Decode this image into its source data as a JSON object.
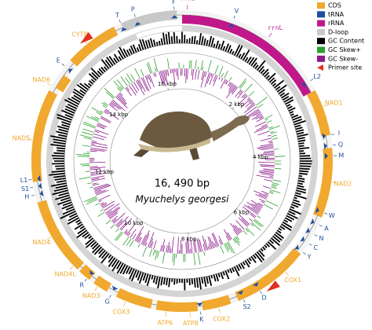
{
  "legend": [
    {
      "label": "CDS",
      "kind": "CDS"
    },
    {
      "label": "tRNA",
      "kind": "tRNA"
    },
    {
      "label": "rRNA",
      "kind": "rRNA"
    },
    {
      "label": "D-loop",
      "kind": "dloop"
    },
    {
      "label": "GC Content",
      "kind": "gc"
    },
    {
      "label": "GC Skew+",
      "kind": "skewpos"
    },
    {
      "label": "GC Skew-",
      "kind": "skewneg"
    },
    {
      "label": "Primer site",
      "kind": "primer"
    }
  ],
  "genome": {
    "length_label": "16, 490 bp",
    "species": "Myuchelys georgesi"
  },
  "scale_labels": [
    "2 kbp",
    "4 kbp",
    "6 kbp",
    "8 kbp",
    "10 kbp",
    "12 kbp",
    "14 kbp",
    "16 kbp"
  ],
  "genes": [
    {
      "label": "F",
      "kind": "tRNA"
    },
    {
      "label": "rrnS",
      "kind": "rRNA"
    },
    {
      "label": "V",
      "kind": "tRNA"
    },
    {
      "label": "rrnL",
      "kind": "rRNA"
    },
    {
      "label": "L2",
      "kind": "tRNA"
    },
    {
      "label": "NAD1",
      "kind": "CDS"
    },
    {
      "label": "I",
      "kind": "tRNA"
    },
    {
      "label": "Q",
      "kind": "tRNA"
    },
    {
      "label": "M",
      "kind": "tRNA"
    },
    {
      "label": "NAD2",
      "kind": "CDS"
    },
    {
      "label": "W",
      "kind": "tRNA"
    },
    {
      "label": "A",
      "kind": "tRNA"
    },
    {
      "label": "N",
      "kind": "tRNA"
    },
    {
      "label": "C",
      "kind": "tRNA"
    },
    {
      "label": "Y",
      "kind": "tRNA"
    },
    {
      "label": "COX1",
      "kind": "CDS"
    },
    {
      "label": "D",
      "kind": "tRNA"
    },
    {
      "label": "S2",
      "kind": "tRNA"
    },
    {
      "label": "COX2",
      "kind": "CDS"
    },
    {
      "label": "K",
      "kind": "tRNA"
    },
    {
      "label": "ATP8",
      "kind": "CDS"
    },
    {
      "label": "ATP6",
      "kind": "CDS"
    },
    {
      "label": "COX3",
      "kind": "CDS"
    },
    {
      "label": "G",
      "kind": "tRNA"
    },
    {
      "label": "NAD3",
      "kind": "CDS"
    },
    {
      "label": "R",
      "kind": "tRNA"
    },
    {
      "label": "NAD4L",
      "kind": "CDS"
    },
    {
      "label": "NAD4",
      "kind": "CDS"
    },
    {
      "label": "H",
      "kind": "tRNA"
    },
    {
      "label": "S1",
      "kind": "tRNA"
    },
    {
      "label": "L1",
      "kind": "tRNA"
    },
    {
      "label": "NAD5",
      "kind": "CDS"
    },
    {
      "label": "NAD6",
      "kind": "CDS"
    },
    {
      "label": "E",
      "kind": "tRNA"
    },
    {
      "label": "CYTB",
      "kind": "CDS"
    },
    {
      "label": "T",
      "kind": "tRNA"
    },
    {
      "label": "P",
      "kind": "tRNA"
    }
  ]
}
